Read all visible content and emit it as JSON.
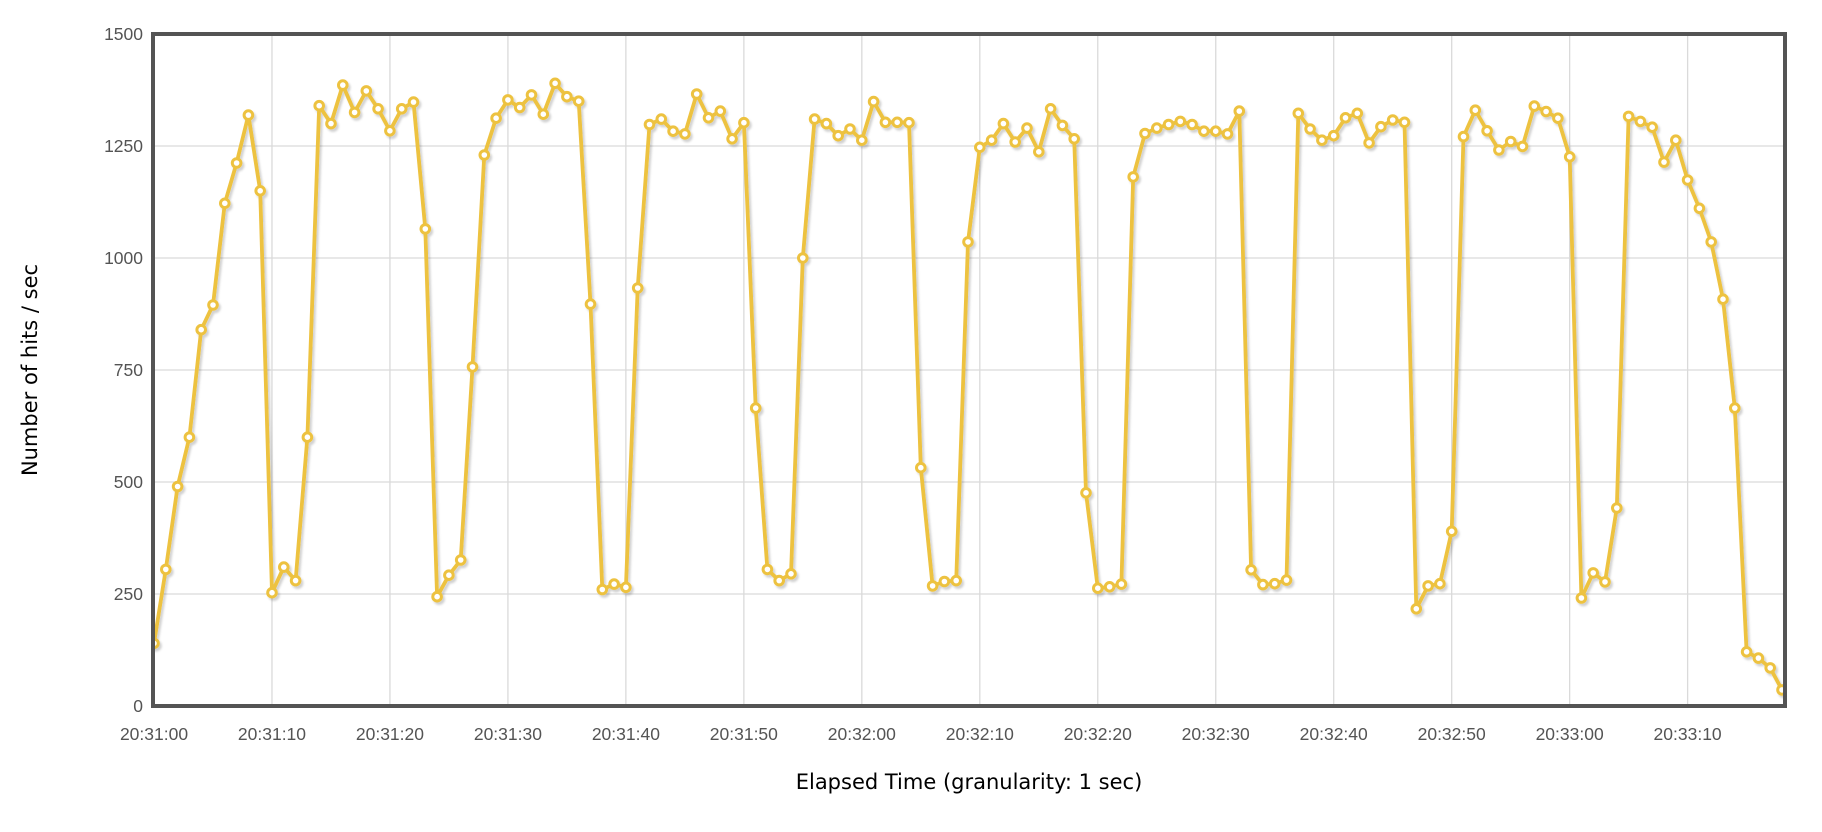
{
  "page": {
    "background": "#FFFFFF"
  },
  "chart_data": {
    "type": "line",
    "title": "",
    "xlabel": "Elapsed Time (granularity: 1 sec)",
    "ylabel": "Number of hits / sec",
    "x_unit": "time-of-day",
    "x_start": "20:31:00",
    "x_step_seconds": 1,
    "x_range_seconds": [
      0,
      138
    ],
    "x_tick_seconds": [
      0,
      10,
      20,
      30,
      40,
      50,
      60,
      70,
      80,
      90,
      100,
      110,
      120,
      130
    ],
    "x_tick_labels": [
      "20:31:00",
      "20:31:10",
      "20:31:20",
      "20:31:30",
      "20:31:40",
      "20:31:50",
      "20:32:00",
      "20:32:10",
      "20:32:20",
      "20:32:30",
      "20:32:40",
      "20:32:50",
      "20:33:00",
      "20:33:10"
    ],
    "ylim": [
      0,
      1500
    ],
    "y_ticks": [
      0,
      250,
      500,
      750,
      1000,
      1250,
      1500
    ],
    "y_tick_labels": [
      "0",
      "250",
      "500",
      "750",
      "1000",
      "1250",
      "1500"
    ],
    "grid": true,
    "legend_position": "none",
    "series": [
      {
        "name": "Number of hits / sec",
        "color": "#EDC240",
        "marker": "open-circle",
        "values": [
          140,
          305,
          490,
          600,
          840,
          895,
          1122,
          1212,
          1319,
          1150,
          253,
          310,
          280,
          600,
          1340,
          1300,
          1386,
          1325,
          1373,
          1333,
          1284,
          1333,
          1348,
          1065,
          244,
          292,
          326,
          757,
          1230,
          1312,
          1353,
          1336,
          1364,
          1321,
          1390,
          1360,
          1350,
          897,
          260,
          272,
          265,
          933,
          1298,
          1310,
          1283,
          1277,
          1366,
          1313,
          1328,
          1266,
          1302,
          665,
          305,
          280,
          295,
          1000,
          1310,
          1300,
          1273,
          1288,
          1263,
          1349,
          1303,
          1303,
          1302,
          532,
          268,
          278,
          280,
          1036,
          1247,
          1263,
          1300,
          1259,
          1290,
          1237,
          1333,
          1296,
          1266,
          476,
          263,
          266,
          272,
          1181,
          1278,
          1290,
          1298,
          1305,
          1298,
          1283,
          1283,
          1277,
          1328,
          304,
          271,
          273,
          281,
          1323,
          1288,
          1263,
          1273,
          1313,
          1323,
          1257,
          1293,
          1308,
          1303,
          217,
          268,
          273,
          390,
          1271,
          1330,
          1284,
          1241,
          1260,
          1249,
          1339,
          1327,
          1312,
          1226,
          241,
          297,
          277,
          442,
          1316,
          1305,
          1292,
          1214,
          1263,
          1174,
          1111,
          1036,
          908,
          665,
          121,
          107,
          85,
          36
        ]
      }
    ]
  },
  "styles": {
    "series_color": "#EDC240",
    "marker_fill": "#FFFFFF",
    "plot_border_color": "#545454",
    "grid_color": "#DADADA",
    "tick_label_color": "#545454",
    "axis_title_color": "#000000",
    "background": "#FFFFFF",
    "shadow_color": "rgba(0,0,0,0.18)"
  }
}
